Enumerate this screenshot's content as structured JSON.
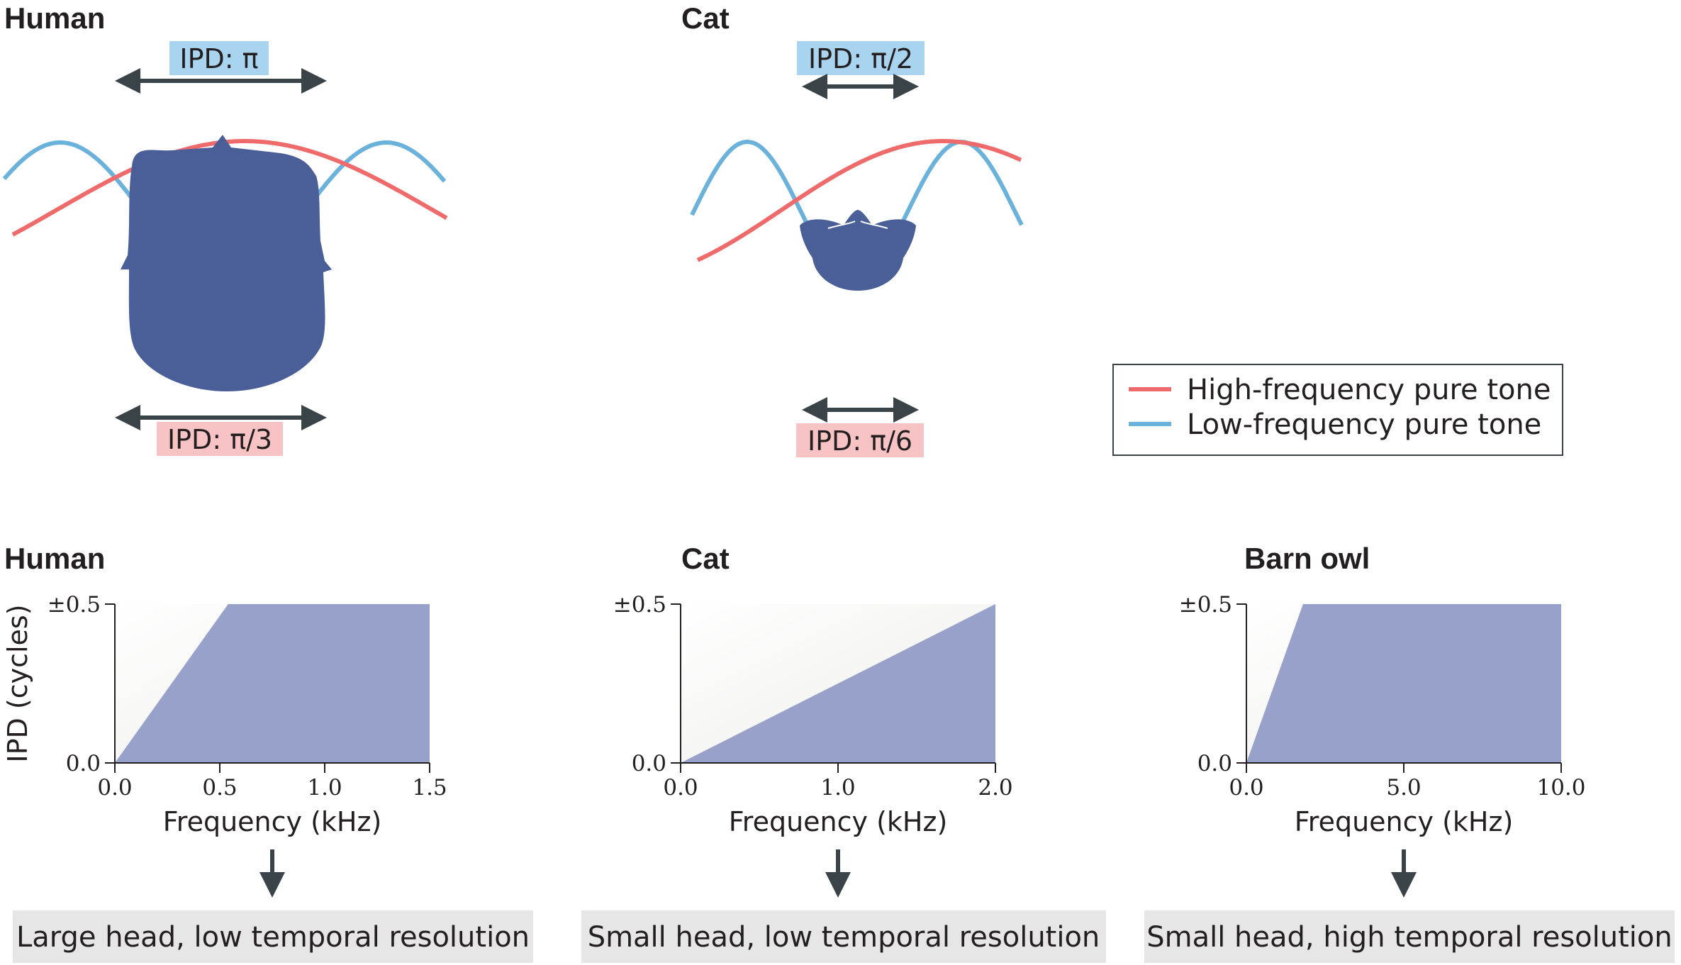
{
  "colors": {
    "high_tone": "#ef6b6b",
    "low_tone": "#6ab2db",
    "head": "#4a5f98",
    "ipd_fill": "#98a1c9",
    "blue_label_bg": "#a9d4ef",
    "red_label_bg": "#f8c3c5",
    "arrow": "#3a4347",
    "conclusion_bg": "#e6e6e6"
  },
  "panels_top": [
    {
      "title": "Human",
      "ipd_low": "IPD: π",
      "ipd_high": "IPD: π/3"
    },
    {
      "title": "Cat",
      "ipd_low": "IPD: π/2",
      "ipd_high": "IPD: π/6"
    }
  ],
  "legend": {
    "high": "High-frequency pure tone",
    "low": "Low-frequency pure tone"
  },
  "chart_data": [
    {
      "type": "area",
      "title": "Human",
      "xlabel": "Frequency (kHz)",
      "ylabel": "IPD (cycles)",
      "xlim": [
        0,
        1.5
      ],
      "ylim": [
        0,
        0.5
      ],
      "x_ticks": [
        "0.0",
        "0.5",
        "1.0",
        "1.5"
      ],
      "y_ticks": [
        "0.0",
        "±0.5"
      ],
      "x": [
        0,
        0.54,
        1.5
      ],
      "y": [
        0,
        0.5,
        0.5
      ],
      "conclusion": "Large head, low temporal resolution"
    },
    {
      "type": "area",
      "title": "Cat",
      "xlabel": "Frequency (kHz)",
      "ylabel": "",
      "xlim": [
        0,
        2.0
      ],
      "ylim": [
        0,
        0.5
      ],
      "x_ticks": [
        "0.0",
        "1.0",
        "2.0"
      ],
      "y_ticks": [
        "0.0",
        "±0.5"
      ],
      "x": [
        0,
        2.0
      ],
      "y": [
        0,
        0.5
      ],
      "conclusion": "Small head, low temporal resolution"
    },
    {
      "type": "area",
      "title": "Barn owl",
      "xlabel": "Frequency (kHz)",
      "ylabel": "",
      "xlim": [
        0,
        10.0
      ],
      "ylim": [
        0,
        0.5
      ],
      "x_ticks": [
        "0.0",
        "5.0",
        "10.0"
      ],
      "y_ticks": [
        "0.0",
        "±0.5"
      ],
      "x": [
        0,
        1.8,
        10.0
      ],
      "y": [
        0,
        0.5,
        0.5
      ],
      "conclusion": "Small head, high temporal resolution"
    }
  ]
}
